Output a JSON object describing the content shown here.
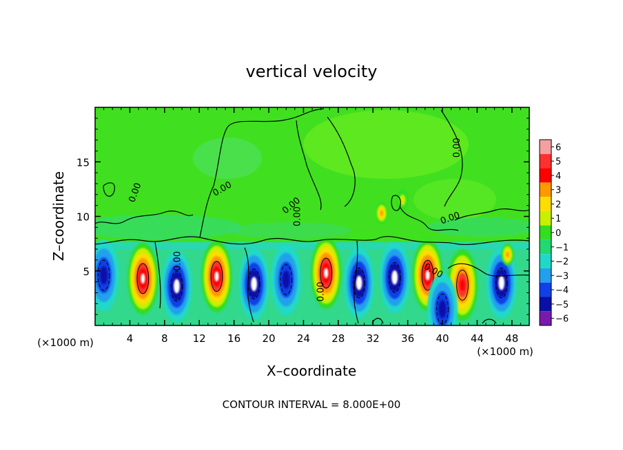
{
  "chart_data": {
    "type": "heatmap",
    "title": "vertical velocity",
    "xlabel": "X–coordinate",
    "ylabel": "Z–coordinate",
    "x_unit_left": "(×1000 m)",
    "x_unit_right": "(×1000 m)",
    "footer": "CONTOUR INTERVAL = 8.000E+00",
    "xlim": [
      0,
      50
    ],
    "ylim": [
      0,
      20
    ],
    "x_ticks": [
      4,
      8,
      12,
      16,
      20,
      24,
      28,
      32,
      36,
      40,
      44,
      48
    ],
    "y_ticks": [
      5,
      10,
      15
    ],
    "colorbar": {
      "levels": [
        6,
        5,
        4,
        3,
        2,
        1,
        0,
        -1,
        -2,
        -3,
        -4,
        -5,
        -6
      ],
      "colors": [
        "#f4a0a0",
        "#ff3030",
        "#ff0000",
        "#ff9900",
        "#ffdd00",
        "#c8f000",
        "#33dd22",
        "#22d870",
        "#20d8c8",
        "#22a0ee",
        "#1040e8",
        "#0810a8",
        "#7a1aaa"
      ]
    },
    "contour_labels": [
      {
        "text": "0.00",
        "x": 4.9,
        "y": 12.1,
        "angle": -70
      },
      {
        "text": "0.00",
        "x": 14.8,
        "y": 12.3,
        "angle": -30
      },
      {
        "text": "0.00",
        "x": 22.8,
        "y": 10.8,
        "angle": -40
      },
      {
        "text": "0.00",
        "x": 23.6,
        "y": 10.0,
        "angle": -90
      },
      {
        "text": "0.00",
        "x": 9.8,
        "y": 5.9,
        "angle": -90
      },
      {
        "text": "0.00",
        "x": 26.3,
        "y": 3.1,
        "angle": -90
      },
      {
        "text": "0.00",
        "x": 38.8,
        "y": 4.8,
        "angle": 30
      },
      {
        "text": "0.00",
        "x": 41.0,
        "y": 9.6,
        "angle": -20
      },
      {
        "text": "0.00",
        "x": 42.0,
        "y": 16.3,
        "angle": -90
      }
    ],
    "cells": [
      {
        "x": 1.0,
        "z": 4.6,
        "w": -5
      },
      {
        "x": 5.5,
        "z": 4.3,
        "w": 6
      },
      {
        "x": 9.4,
        "z": 3.6,
        "w": -6
      },
      {
        "x": 14.0,
        "z": 4.5,
        "w": 6
      },
      {
        "x": 18.3,
        "z": 3.8,
        "w": -6
      },
      {
        "x": 22.0,
        "z": 4.2,
        "w": -5
      },
      {
        "x": 26.6,
        "z": 4.8,
        "w": 6
      },
      {
        "x": 30.4,
        "z": 3.9,
        "w": -6
      },
      {
        "x": 34.5,
        "z": 4.4,
        "w": -6
      },
      {
        "x": 38.3,
        "z": 4.6,
        "w": 6
      },
      {
        "x": 42.3,
        "z": 3.7,
        "w": 5
      },
      {
        "x": 46.8,
        "z": 3.9,
        "w": -6
      },
      {
        "x": 40.0,
        "z": 1.5,
        "w": -5
      },
      {
        "x": 47.5,
        "z": 6.5,
        "w": 3
      },
      {
        "x": 33.0,
        "z": 10.3,
        "w": 3
      },
      {
        "x": 35.4,
        "z": 11.5,
        "w": 2
      }
    ]
  }
}
